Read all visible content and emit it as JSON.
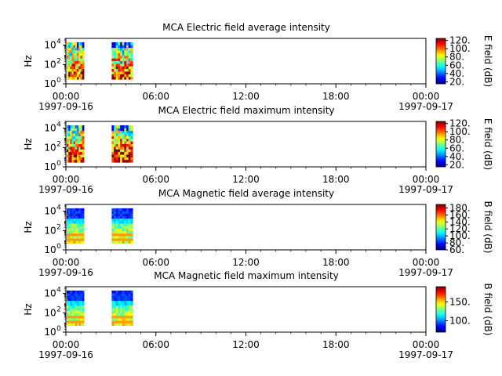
{
  "chart_data": [
    {
      "type": "heatmap",
      "title": "MCA  Electric field average intensity",
      "ylabel": "Hz",
      "colorbar_label": "E field (dB)",
      "colorbar_ticks": [
        "20.",
        "40.",
        "60.",
        "80.",
        "100.",
        "120."
      ],
      "colorbar_range": [
        15,
        125
      ],
      "data_blocks": [
        {
          "start": "00:00",
          "end": "01:15",
          "freq_range": [
            3,
            20000
          ],
          "intensity": "mixed 40-110"
        },
        {
          "start": "03:00",
          "end": "04:30",
          "freq_range": [
            3,
            20000
          ],
          "intensity": "mixed 40-110"
        }
      ]
    },
    {
      "type": "heatmap",
      "title": "MCA  Electric field maximum intensity",
      "ylabel": "Hz",
      "colorbar_label": "E field (dB)",
      "colorbar_ticks": [
        "20.",
        "40.",
        "60.",
        "80.",
        "100.",
        "120."
      ],
      "colorbar_range": [
        15,
        125
      ],
      "data_blocks": [
        {
          "start": "00:00",
          "end": "01:15",
          "freq_range": [
            3,
            20000
          ],
          "intensity": "mixed 40-120"
        },
        {
          "start": "03:00",
          "end": "04:30",
          "freq_range": [
            3,
            20000
          ],
          "intensity": "mixed 40-120"
        }
      ]
    },
    {
      "type": "heatmap",
      "title": "MCA  Magnetic field average intensity",
      "ylabel": "Hz",
      "colorbar_label": "B field (dB)",
      "colorbar_ticks": [
        "60.",
        "80.",
        "100.",
        "120.",
        "140.",
        "160.",
        "180."
      ],
      "colorbar_range": [
        60,
        190
      ],
      "data_blocks": [
        {
          "start": "00:00",
          "end": "01:15",
          "freq_range": [
            5,
            20000
          ],
          "intensity": "high at low freq, low at high freq"
        },
        {
          "start": "03:00",
          "end": "04:30",
          "freq_range": [
            5,
            20000
          ],
          "intensity": "high at low freq, low at high freq"
        }
      ]
    },
    {
      "type": "heatmap",
      "title": "MCA  Magnetic field maximum intensity",
      "ylabel": "Hz",
      "colorbar_label": "B field (dB)",
      "colorbar_ticks": [
        "100.",
        "150."
      ],
      "colorbar_range": [
        70,
        190
      ],
      "data_blocks": [
        {
          "start": "00:00",
          "end": "01:15",
          "freq_range": [
            5,
            20000
          ],
          "intensity": "high at low freq, low at high freq"
        },
        {
          "start": "03:00",
          "end": "04:30",
          "freq_range": [
            5,
            20000
          ],
          "intensity": "high at low freq, low at high freq"
        }
      ]
    }
  ],
  "x_axis": {
    "range": [
      "1997-09-16 00:00",
      "1997-09-17 00:00"
    ],
    "tick_labels": [
      "00:00",
      "06:00",
      "12:00",
      "18:00",
      "00:00"
    ],
    "date_start": "1997-09-16",
    "date_end": "1997-09-17"
  },
  "y_axis": {
    "scale": "log",
    "range": [
      1,
      50000
    ],
    "tick_base": "10",
    "tick_exponents": [
      "0",
      "2",
      "4"
    ]
  }
}
